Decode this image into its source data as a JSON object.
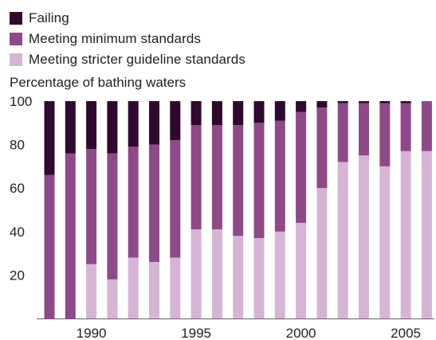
{
  "legend": [
    {
      "label": "Failing",
      "color": "#300a2e"
    },
    {
      "label": "Meeting minimum standards",
      "color": "#8e4a88"
    },
    {
      "label": "Meeting stricter guideline standards",
      "color": "#d6b5d4"
    }
  ],
  "ylabel": "Percentage of bathing waters",
  "chart_data": {
    "type": "bar",
    "stacked": true,
    "ylim": [
      0,
      100
    ],
    "yticks": [
      20,
      40,
      60,
      80,
      100
    ],
    "xtick_labels": [
      "1990",
      "1995",
      "2000",
      "2005"
    ],
    "categories": [
      1988,
      1989,
      1990,
      1991,
      1992,
      1993,
      1994,
      1995,
      1996,
      1997,
      1998,
      1999,
      2000,
      2001,
      2002,
      2003,
      2004,
      2005,
      2006
    ],
    "series": [
      {
        "name": "Meeting stricter guideline standards",
        "color": "#d6b5d4",
        "values": [
          0,
          0,
          25,
          18,
          28,
          26,
          28,
          41,
          41,
          38,
          37,
          40,
          44,
          60,
          72,
          75,
          70,
          77,
          77
        ]
      },
      {
        "name": "Meeting minimum standards",
        "color": "#8e4a88",
        "values": [
          66,
          76,
          53,
          58,
          51,
          54,
          54,
          48,
          48,
          51,
          53,
          51,
          51,
          37,
          27,
          24,
          29,
          22,
          23
        ]
      },
      {
        "name": "Failing",
        "color": "#300a2e",
        "values": [
          34,
          24,
          22,
          24,
          21,
          20,
          18,
          11,
          11,
          11,
          10,
          9,
          5,
          3,
          1,
          1,
          1,
          1,
          0
        ]
      }
    ],
    "grid": false,
    "legend_position": "top-left"
  }
}
